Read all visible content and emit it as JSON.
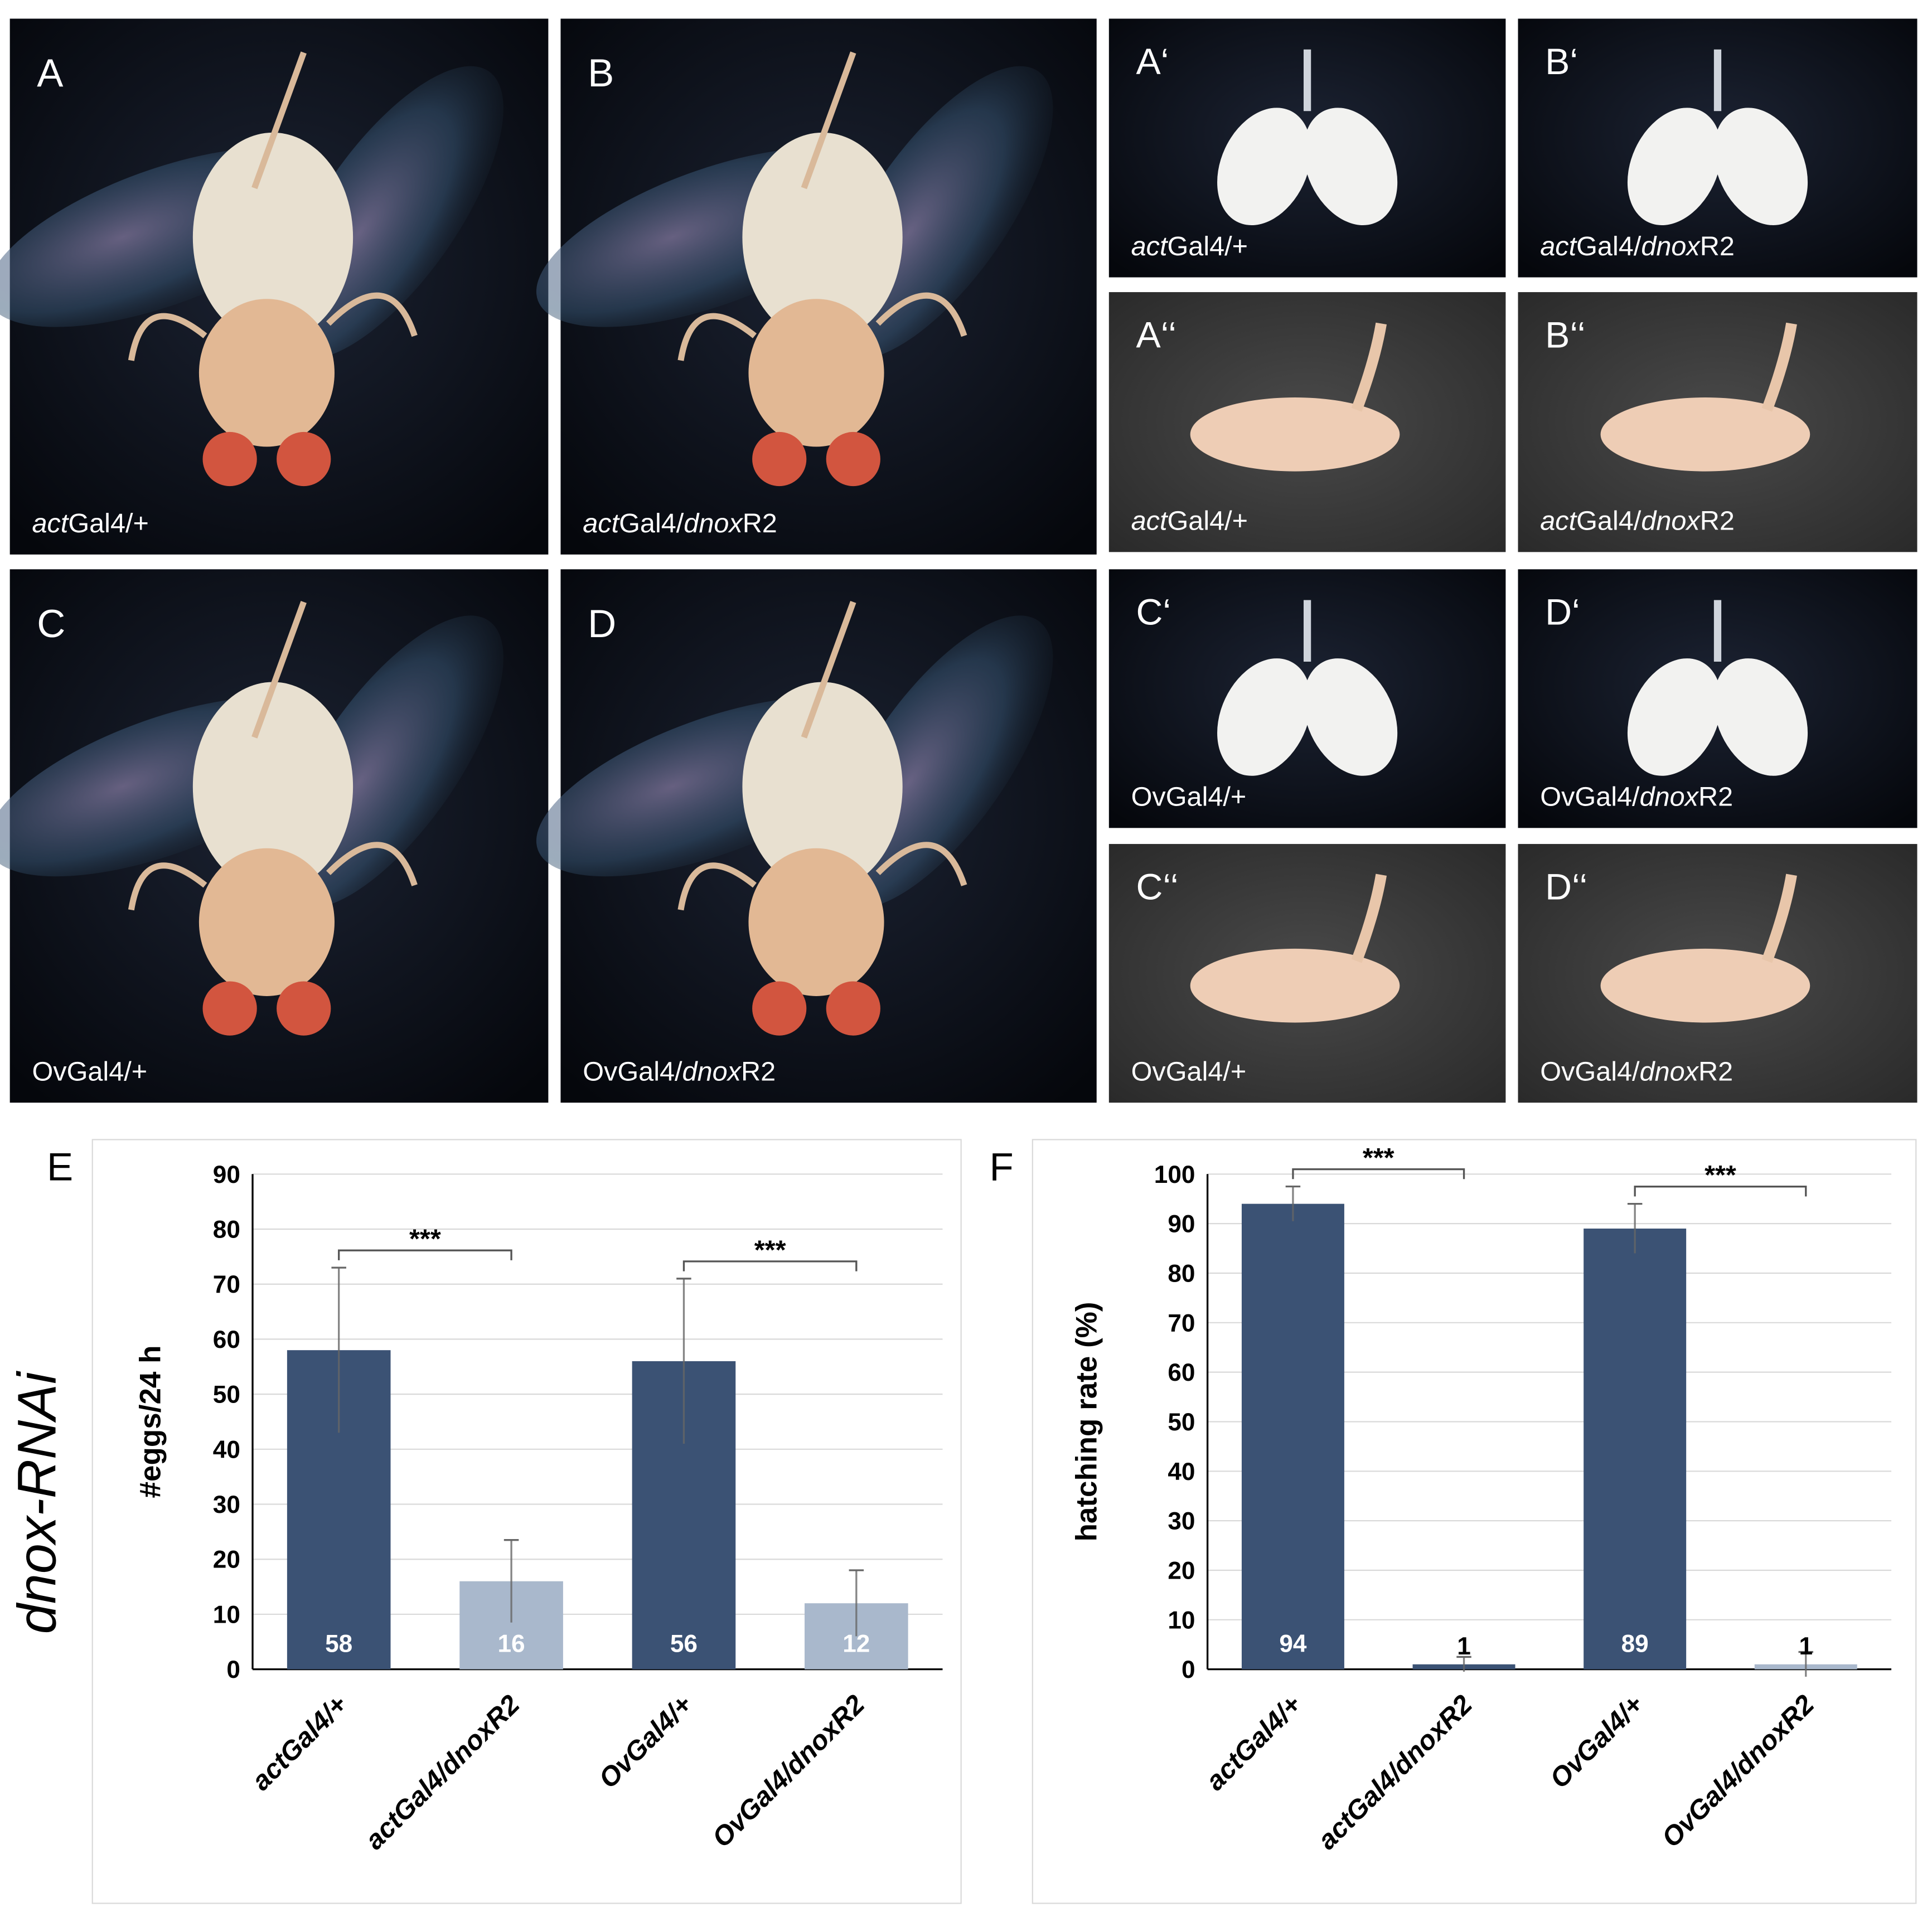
{
  "panels": [
    {
      "label": "A",
      "caption": [
        {
          "text": "act",
          "italic": true
        },
        {
          "text": "Gal4/+"
        }
      ]
    },
    {
      "label": "B",
      "caption": [
        {
          "text": "act",
          "italic": true
        },
        {
          "text": "Gal4/"
        },
        {
          "text": "dnox",
          "italic": true
        },
        {
          "text": "R2"
        }
      ]
    },
    {
      "label": "A‘",
      "caption": [
        {
          "text": "act",
          "italic": true
        },
        {
          "text": "Gal4/+"
        }
      ]
    },
    {
      "label": "B‘",
      "caption": [
        {
          "text": "act",
          "italic": true
        },
        {
          "text": "Gal4/"
        },
        {
          "text": "dnox",
          "italic": true
        },
        {
          "text": "R2"
        }
      ]
    },
    {
      "label": "A‘‘",
      "caption": [
        {
          "text": "act",
          "italic": true
        },
        {
          "text": "Gal4/+"
        }
      ]
    },
    {
      "label": "B‘‘",
      "caption": [
        {
          "text": "act",
          "italic": true
        },
        {
          "text": "Gal4/"
        },
        {
          "text": "dnox",
          "italic": true
        },
        {
          "text": "R2"
        }
      ]
    },
    {
      "label": "C",
      "caption": [
        {
          "text": "OvGal4/+"
        }
      ]
    },
    {
      "label": "D",
      "caption": [
        {
          "text": "OvGal4/"
        },
        {
          "text": "dnox",
          "italic": true
        },
        {
          "text": "R2"
        }
      ]
    },
    {
      "label": "C‘",
      "caption": [
        {
          "text": "OvGal4/+"
        }
      ]
    },
    {
      "label": "D‘",
      "caption": [
        {
          "text": "OvGal4/"
        },
        {
          "text": "dnox",
          "italic": true
        },
        {
          "text": "R2"
        }
      ]
    },
    {
      "label": "C‘‘",
      "caption": [
        {
          "text": "OvGal4/+"
        }
      ]
    },
    {
      "label": "D‘‘",
      "caption": [
        {
          "text": "OvGal4/"
        },
        {
          "text": "dnox",
          "italic": true
        },
        {
          "text": "R2"
        }
      ]
    }
  ],
  "side_label": "dnox-RNAi",
  "chart_data": [
    {
      "type": "bar",
      "panel": "E",
      "ylabel": "#eggs/24 h",
      "categories": [
        "actGal4/+",
        "actGal4/dnoxR2",
        "OvGal4/+",
        "OvGal4/dnoxR2"
      ],
      "values": [
        58,
        16,
        56,
        12
      ],
      "errors": [
        15,
        7.5,
        15,
        6
      ],
      "colors": [
        "#3b5274",
        "#a9b8cc",
        "#3b5274",
        "#a9b8cc"
      ],
      "ylim": [
        0,
        90
      ],
      "yticks": [
        0,
        10,
        20,
        30,
        40,
        50,
        60,
        70,
        80,
        90
      ],
      "grid": true,
      "significance": [
        {
          "pair": [
            0,
            1
          ],
          "label": "***"
        },
        {
          "pair": [
            2,
            3
          ],
          "label": "***"
        }
      ]
    },
    {
      "type": "bar",
      "panel": "F",
      "ylabel": "hatching rate (%)",
      "categories": [
        "actGal4/+",
        "actGal4/dnoxR2",
        "OvGal4/+",
        "OvGal4/dnoxR2"
      ],
      "values": [
        94,
        1,
        89,
        1
      ],
      "errors": [
        3.5,
        1.5,
        5,
        2.5
      ],
      "colors": [
        "#3b5274",
        "#3b5274",
        "#3b5274",
        "#a9b8cc"
      ],
      "ylim": [
        0,
        100
      ],
      "yticks": [
        0,
        10,
        20,
        30,
        40,
        50,
        60,
        70,
        80,
        90,
        100
      ],
      "grid": true,
      "significance": [
        {
          "pair": [
            0,
            1
          ],
          "label": "***"
        },
        {
          "pair": [
            2,
            3
          ],
          "label": "***"
        }
      ]
    }
  ]
}
